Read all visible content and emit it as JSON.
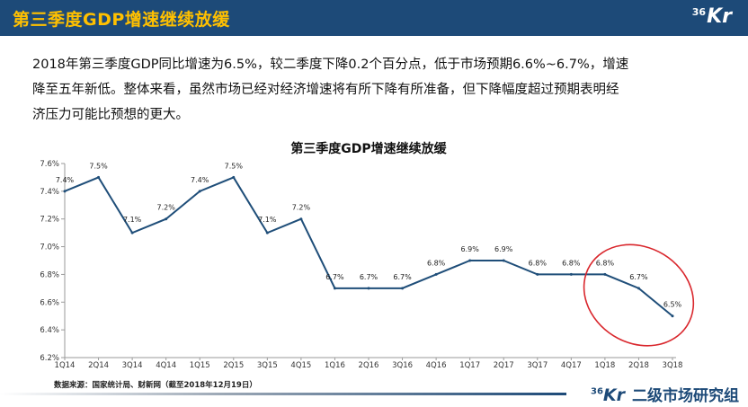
{
  "header": {
    "title": "第三季度GDP增速继续放缓",
    "logo_num": "36",
    "logo_text": "Kr"
  },
  "intro": {
    "line1": "2018年第三季度GDP同比增速为6.5%，较二季度下降0.2个百分点，低于市场预期6.6%~6.7%，增速",
    "line2": "降至五年新低。整体来看，虽然市场已经对经济增速将有所下降有所准备，但下降幅度超过预期表明经",
    "line3": "济压力可能比预想的更大。"
  },
  "chart_data": {
    "type": "line",
    "title": "第三季度GDP增速继续放缓",
    "categories": [
      "1Q14",
      "2Q14",
      "3Q14",
      "4Q14",
      "1Q15",
      "2Q15",
      "3Q15",
      "4Q15",
      "1Q16",
      "2Q16",
      "3Q16",
      "4Q16",
      "1Q17",
      "2Q17",
      "3Q17",
      "4Q17",
      "1Q18",
      "2Q18",
      "3Q18"
    ],
    "values": [
      7.4,
      7.5,
      7.1,
      7.2,
      7.4,
      7.5,
      7.1,
      7.2,
      6.7,
      6.7,
      6.7,
      6.8,
      6.9,
      6.9,
      6.8,
      6.8,
      6.8,
      6.7,
      6.5
    ],
    "data_labels": [
      "7.4%",
      "7.5%",
      "7.1%",
      "7.2%",
      "7.4%",
      "7.5%",
      "7.1%",
      "7.2%",
      "6.7%",
      "6.7%",
      "6.7%",
      "6.8%",
      "6.9%",
      "6.9%",
      "6.8%",
      "6.8%",
      "6.8%",
      "6.7%",
      "6.5%"
    ],
    "y_ticks": [
      "6.2%",
      "6.4%",
      "6.6%",
      "6.8%",
      "7.0%",
      "7.2%",
      "7.4%",
      "7.6%"
    ],
    "ylim": [
      6.2,
      7.6
    ],
    "line_color": "#1f4e79",
    "highlight_color": "#d9262c",
    "highlight": "last three points (1Q18–3Q18) circled",
    "grid": false,
    "legend": "none"
  },
  "source": "数据来源：国家统计局、财新网（截至2018年12月19日）",
  "footer": {
    "logo_num": "36",
    "logo_text": "Kr",
    "brand": "二级市场研究组"
  }
}
